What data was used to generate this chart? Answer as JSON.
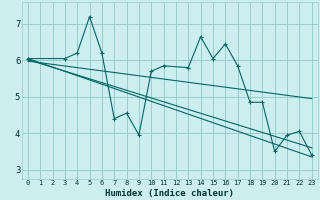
{
  "xlabel": "Humidex (Indice chaleur)",
  "bg_color": "#cceeee",
  "line_color": "#006666",
  "grid_color": "#99cccc",
  "xlim": [
    -0.5,
    23.5
  ],
  "ylim": [
    2.75,
    7.6
  ],
  "xticks": [
    0,
    1,
    2,
    3,
    4,
    5,
    6,
    7,
    8,
    9,
    10,
    11,
    12,
    13,
    14,
    15,
    16,
    17,
    18,
    19,
    20,
    21,
    22,
    23
  ],
  "yticks": [
    3,
    4,
    5,
    6,
    7
  ],
  "zigzag_x": [
    0,
    3,
    4,
    5,
    6,
    7,
    8,
    9,
    10,
    11,
    13,
    14,
    15,
    16,
    17,
    18,
    19,
    20,
    21,
    22,
    23
  ],
  "zigzag_y": [
    6.05,
    6.05,
    6.2,
    7.2,
    6.2,
    4.4,
    4.55,
    3.95,
    5.7,
    5.85,
    5.8,
    6.65,
    6.05,
    6.45,
    5.85,
    4.85,
    4.85,
    3.5,
    3.95,
    4.05,
    3.4
  ],
  "line1_x": [
    0,
    23
  ],
  "line1_y": [
    6.05,
    3.35
  ],
  "line2_x": [
    0,
    23
  ],
  "line2_y": [
    6.02,
    3.6
  ],
  "line3_x": [
    0,
    23
  ],
  "line3_y": [
    5.98,
    4.95
  ]
}
